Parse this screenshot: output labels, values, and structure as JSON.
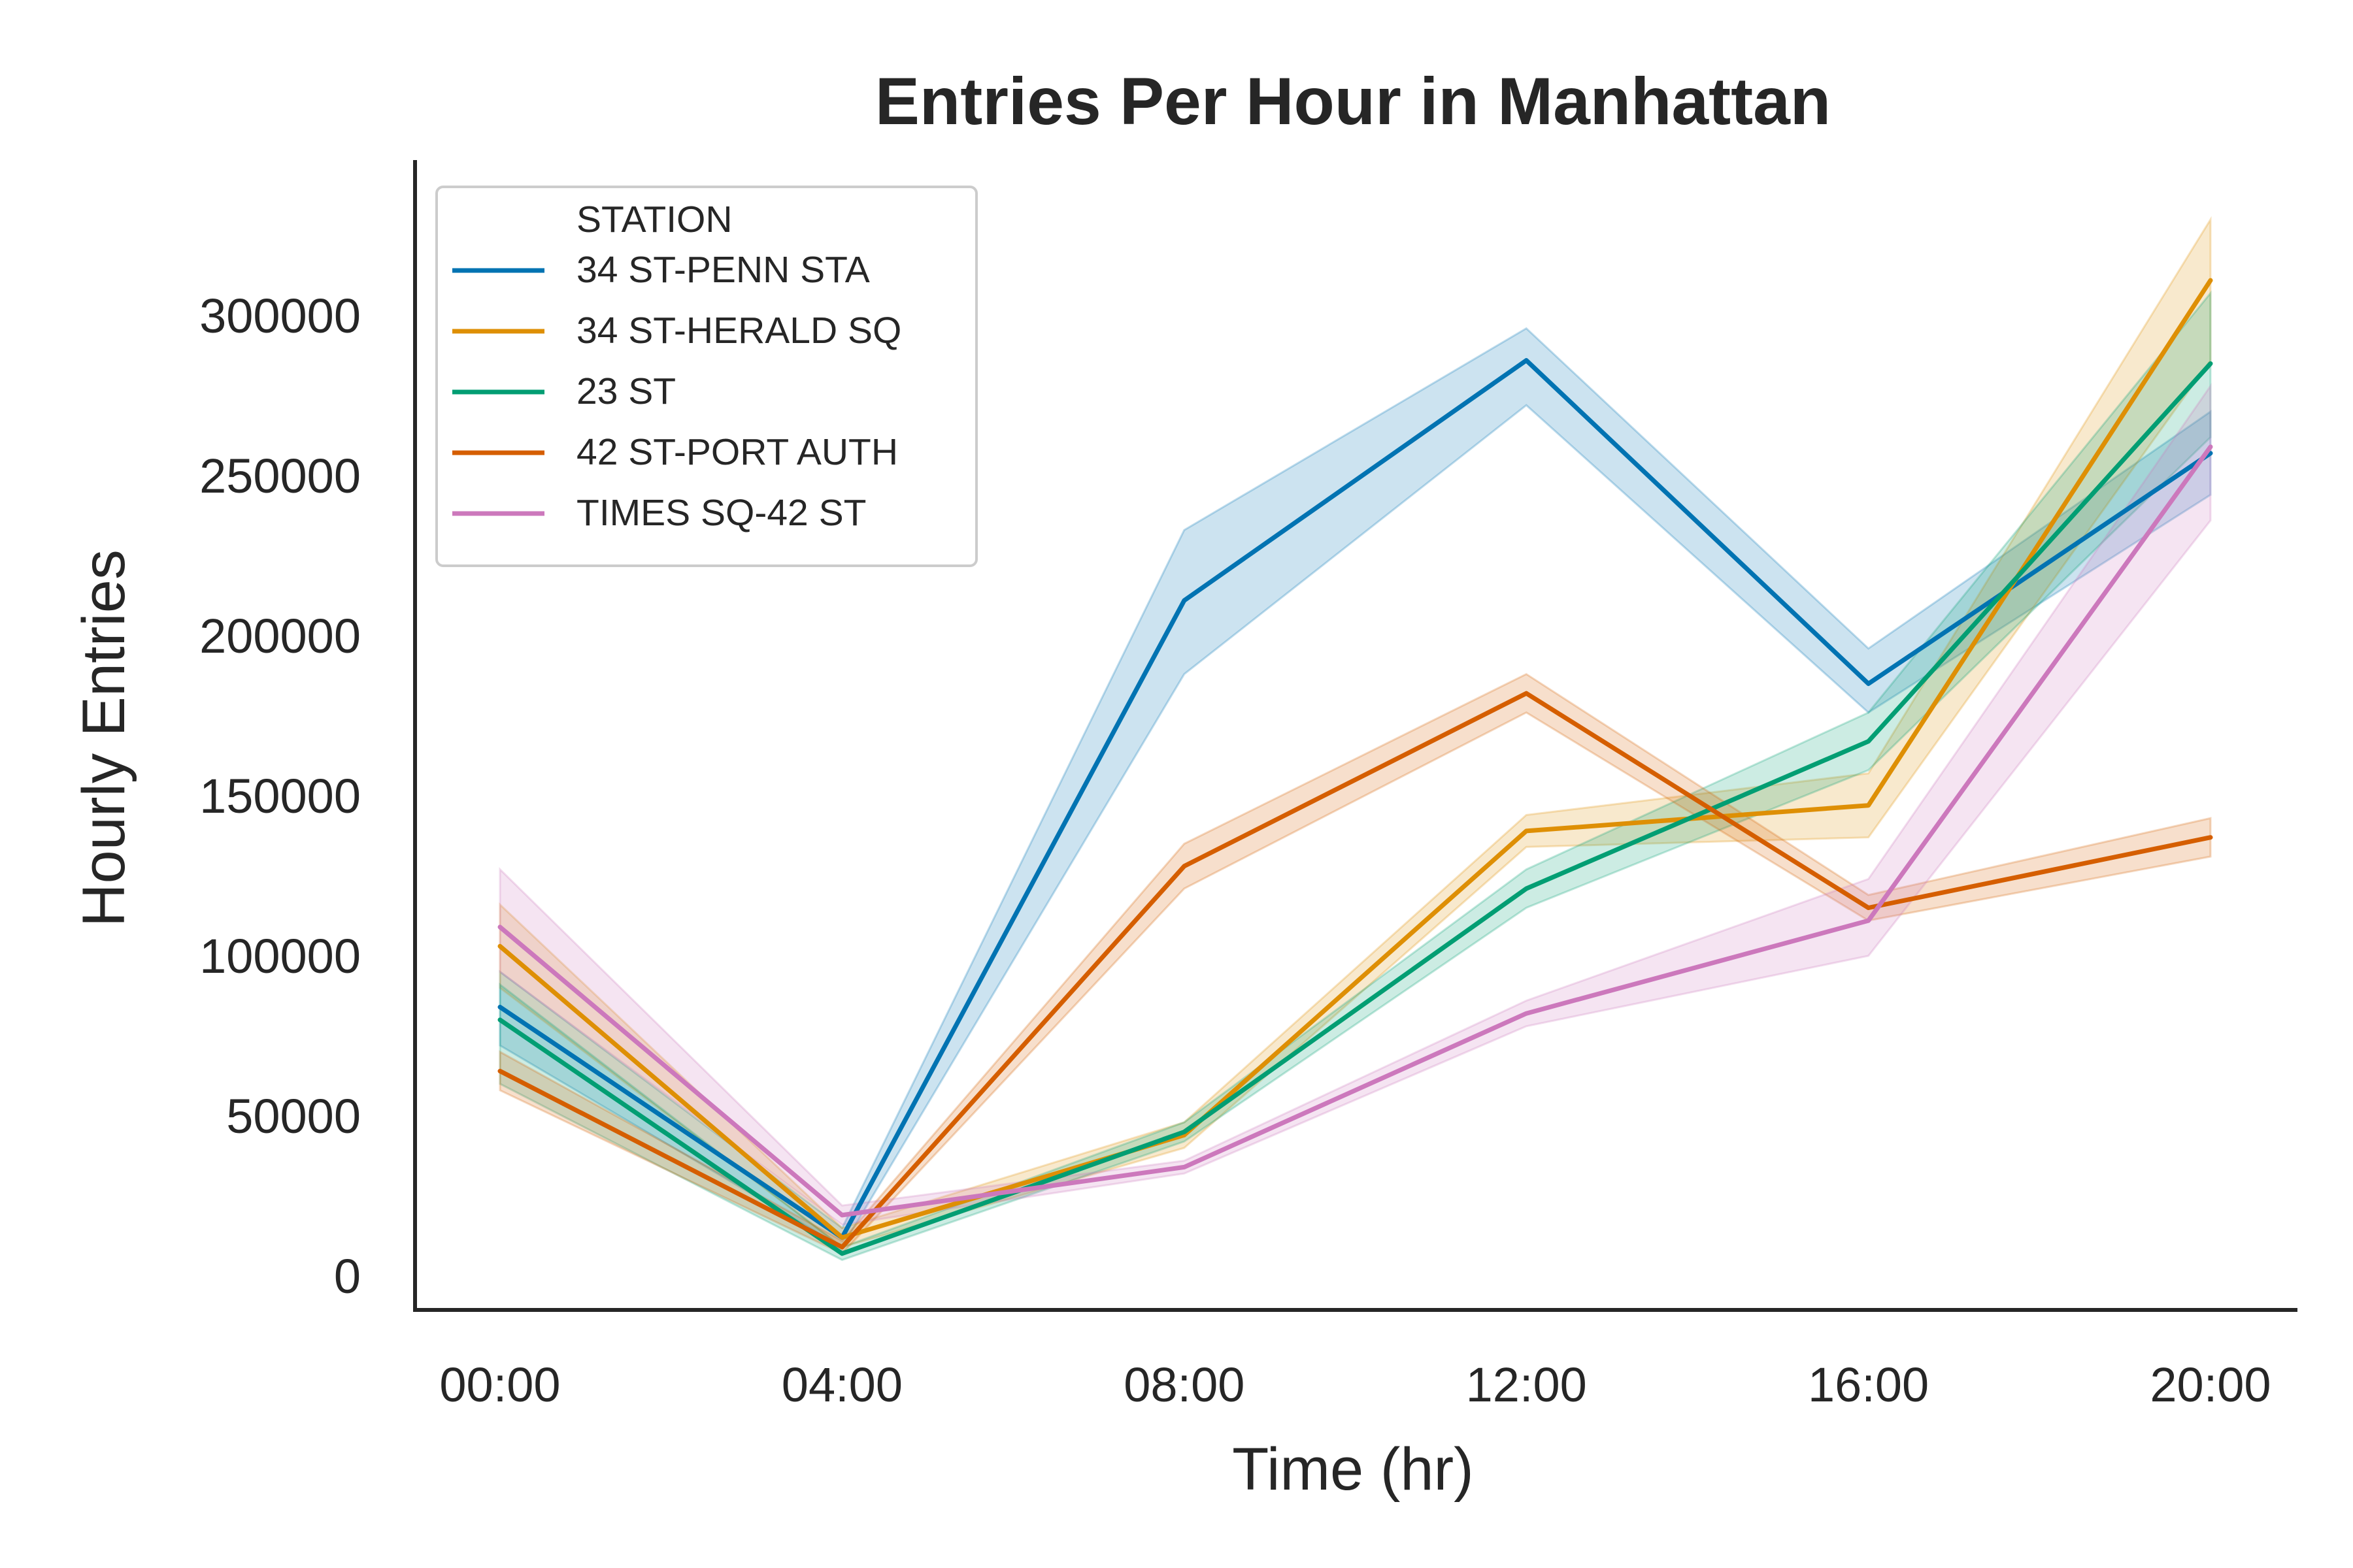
{
  "chart_data": {
    "type": "line",
    "title": "Entries Per Hour in Manhattan",
    "xlabel": "Time (hr)",
    "ylabel": "Hourly Entries",
    "x": [
      "00:00",
      "04:00",
      "08:00",
      "12:00",
      "16:00",
      "20:00"
    ],
    "ylim": [
      -10000,
      345000
    ],
    "yticks": [
      "0",
      "50000",
      "100000",
      "150000",
      "200000",
      "250000",
      "300000"
    ],
    "grid": false,
    "legend": {
      "title": "STATION",
      "placement": "top-left"
    },
    "series": [
      {
        "name": "34 ST-PENN STA",
        "color": "#0173b2",
        "values": [
          84000,
          12000,
          211000,
          286000,
          185000,
          257000
        ],
        "ci_low": [
          72000,
          9000,
          188000,
          272000,
          176000,
          244000
        ],
        "ci_high": [
          95000,
          15000,
          233000,
          296000,
          196000,
          270000
        ]
      },
      {
        "name": "34 ST-HERALD SQ",
        "color": "#de8f05",
        "values": [
          103000,
          12000,
          44000,
          139000,
          147000,
          311000
        ],
        "ci_low": [
          90000,
          9000,
          40000,
          134000,
          137000,
          286000
        ],
        "ci_high": [
          116000,
          15000,
          48000,
          144000,
          157000,
          330000
        ]
      },
      {
        "name": "23 ST",
        "color": "#029e73",
        "values": [
          80000,
          7000,
          45000,
          121000,
          167000,
          285000
        ],
        "ci_low": [
          60000,
          5000,
          42000,
          115000,
          158000,
          262000
        ],
        "ci_high": [
          91000,
          9000,
          48000,
          127000,
          176000,
          307000
        ]
      },
      {
        "name": "42 ST-PORT AUTH",
        "color": "#d55e00",
        "values": [
          64000,
          9000,
          128000,
          182000,
          115000,
          137000
        ],
        "ci_low": [
          58000,
          7000,
          121000,
          176000,
          111000,
          131000
        ],
        "ci_high": [
          70000,
          11000,
          135000,
          188000,
          119000,
          143000
        ]
      },
      {
        "name": "TIMES SQ-42 ST",
        "color": "#cc78bc",
        "values": [
          109000,
          19000,
          34000,
          82000,
          111000,
          259000
        ],
        "ci_low": [
          95000,
          16000,
          32000,
          78000,
          100000,
          236000
        ],
        "ci_high": [
          127000,
          22000,
          36000,
          86000,
          124000,
          278000
        ]
      }
    ]
  }
}
